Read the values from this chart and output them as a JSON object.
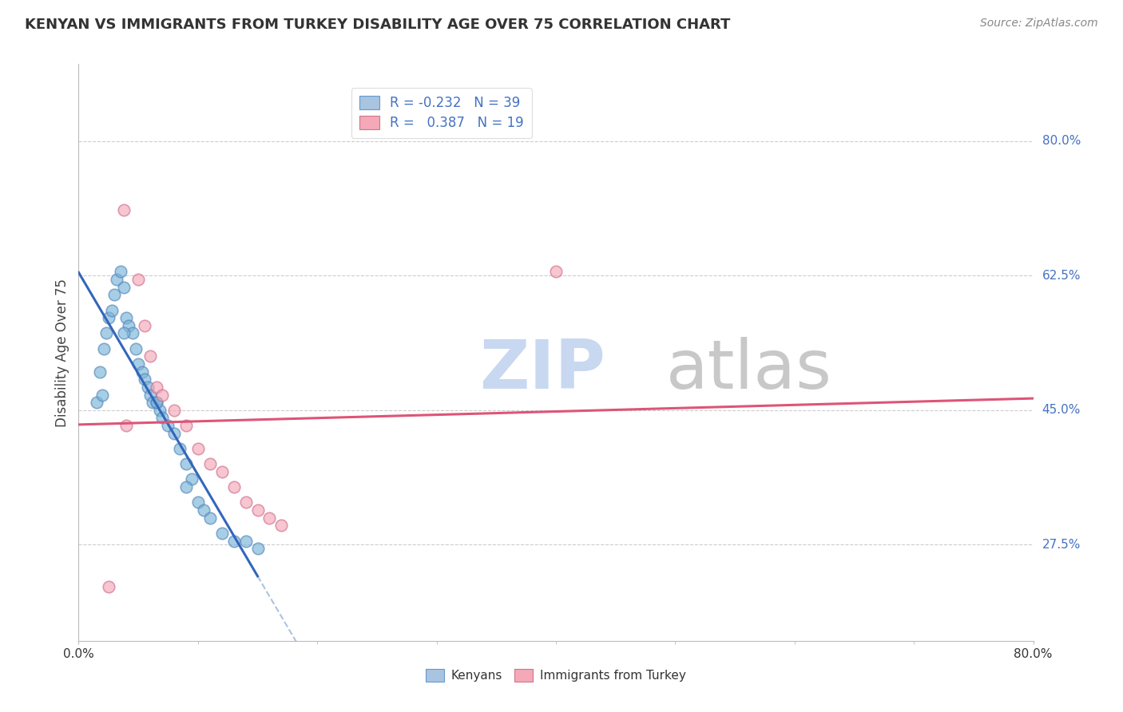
{
  "title": "KENYAN VS IMMIGRANTS FROM TURKEY DISABILITY AGE OVER 75 CORRELATION CHART",
  "source": "Source: ZipAtlas.com",
  "ylabel": "Disability Age Over 75",
  "xlim": [
    0,
    80
  ],
  "ylim": [
    15,
    90
  ],
  "y_ticks_right": [
    27.5,
    45.0,
    62.5,
    80.0
  ],
  "y_tick_labels_right": [
    "27.5%",
    "45.0%",
    "62.5%",
    "80.0%"
  ],
  "legend_items": [
    {
      "color": "#a8c4e0",
      "edge": "#6699cc",
      "R": "-0.232",
      "N": "39"
    },
    {
      "color": "#f4a8b8",
      "edge": "#cc7788",
      "R": " 0.387",
      "N": "19"
    }
  ],
  "blue_scatter_color": "#7ab4d8",
  "blue_scatter_edge": "#5588bb",
  "pink_scatter_color": "#f4a8b8",
  "pink_scatter_edge": "#d07090",
  "blue_line_color": "#3366bb",
  "pink_line_color": "#dd5577",
  "watermark_zip_color": "#c8d8f0",
  "watermark_atlas_color": "#c8c8c8",
  "background_color": "#ffffff",
  "grid_color": "#cccccc",
  "kenyan_x": [
    1.5,
    1.8,
    2.1,
    2.3,
    2.5,
    2.8,
    3.0,
    3.2,
    3.5,
    3.8,
    4.0,
    4.2,
    4.5,
    4.8,
    5.0,
    5.3,
    5.5,
    5.8,
    6.0,
    6.2,
    6.5,
    6.8,
    7.0,
    7.5,
    8.0,
    8.5,
    9.0,
    9.5,
    10.0,
    10.5,
    11.0,
    12.0,
    13.0,
    14.0,
    15.0,
    2.0,
    3.8,
    6.5,
    9.0
  ],
  "kenyan_y": [
    46,
    50,
    53,
    55,
    57,
    58,
    60,
    62,
    63,
    61,
    57,
    56,
    55,
    53,
    51,
    50,
    49,
    48,
    47,
    46,
    46,
    45,
    44,
    43,
    42,
    40,
    38,
    36,
    33,
    32,
    31,
    29,
    28,
    28,
    27,
    47,
    55,
    46,
    35
  ],
  "turkey_x": [
    2.5,
    3.8,
    5.0,
    5.5,
    6.0,
    6.5,
    7.0,
    8.0,
    9.0,
    10.0,
    11.0,
    12.0,
    13.0,
    14.0,
    15.0,
    16.0,
    17.0,
    40.0,
    4.0
  ],
  "turkey_y": [
    22,
    71,
    62,
    56,
    52,
    48,
    47,
    45,
    43,
    40,
    38,
    37,
    35,
    33,
    32,
    31,
    30,
    63,
    43
  ]
}
